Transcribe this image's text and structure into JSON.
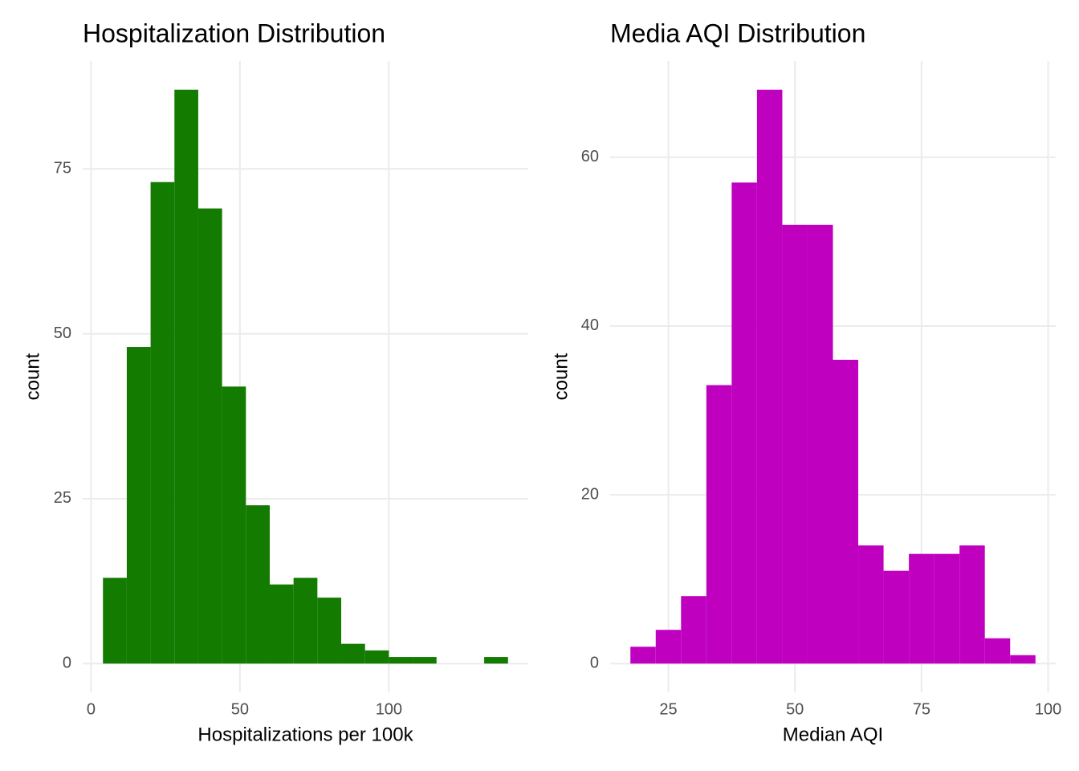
{
  "chart_data": [
    {
      "type": "histogram",
      "title": "Hospitalization Distribution",
      "x_label": "Hospitalizations per 100k",
      "y_label": "count",
      "bins": [
        4,
        12,
        20,
        28,
        36,
        44,
        52,
        60,
        68,
        76,
        84,
        92,
        100,
        108,
        116,
        124,
        132,
        140
      ],
      "counts": [
        13,
        48,
        73,
        87,
        69,
        42,
        24,
        12,
        13,
        10,
        3,
        2,
        1,
        1,
        0,
        0,
        1
      ],
      "color": "#137b00",
      "xlim": [
        -2.8,
        146.8
      ],
      "ylim": [
        -4.35,
        91.35
      ],
      "xticks": [
        0,
        50,
        100
      ],
      "yticks": [
        0,
        25,
        50,
        75
      ],
      "grid": true
    },
    {
      "type": "histogram",
      "title": "Media AQI Distribution",
      "x_label": "Median AQI",
      "y_label": "count",
      "bins": [
        17.5,
        22.5,
        27.5,
        32.5,
        37.5,
        42.5,
        47.5,
        52.5,
        57.5,
        62.5,
        67.5,
        72.5,
        77.5,
        82.5,
        87.5,
        92.5,
        97.5
      ],
      "counts": [
        2,
        4,
        8,
        33,
        57,
        68,
        52,
        52,
        36,
        14,
        11,
        13,
        13,
        14,
        3,
        1
      ],
      "color": "#bf00bf",
      "xlim": [
        13.5,
        101.5
      ],
      "ylim": [
        -3.4,
        71.4
      ],
      "xticks": [
        25,
        50,
        75,
        100
      ],
      "yticks": [
        0,
        20,
        40,
        60
      ],
      "grid": true
    }
  ]
}
